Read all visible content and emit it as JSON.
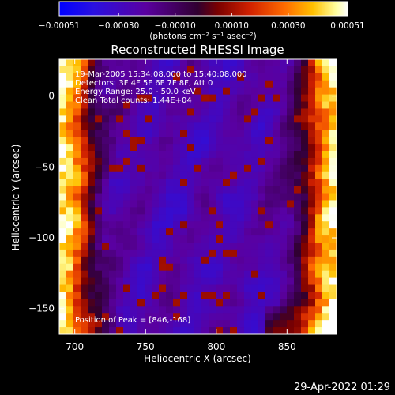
{
  "chart_data": {
    "type": "heatmap",
    "title": "Reconstructed RHESSI Image",
    "xlabel": "Heliocentric X (arcsec)",
    "ylabel": "Heliocentric Y (arcsec)",
    "xlim": [
      689,
      885
    ],
    "ylim": [
      -168,
      26
    ],
    "x_ticks": [
      700,
      750,
      800,
      850
    ],
    "x_tick_labels": [
      "700",
      "750",
      "800",
      "850"
    ],
    "y_ticks": [
      0,
      -50,
      -100,
      -150
    ],
    "y_tick_labels": [
      "0",
      "−50",
      "−100",
      "−150"
    ],
    "colorbar": {
      "range": [
        -0.00051,
        0.00051
      ],
      "ticks": [
        -0.00051,
        -0.0003,
        -0.0001,
        0.0001,
        0.0003,
        0.00051
      ],
      "tick_labels": [
        "−0.00051",
        "−0.00030",
        "−0.00010",
        "0.00010",
        "0.00030",
        "0.00051"
      ],
      "unit_label": "(photons cm⁻² s⁻¹ asec⁻²)",
      "colors": [
        "#0000ff",
        "#3a10c8",
        "#5a00a0",
        "#3a003a",
        "#8b0000",
        "#d02000",
        "#ff6000",
        "#ffb800",
        "#ffffa0",
        "#ffffff"
      ]
    },
    "annotations": [
      "19-Mar-2005 15:34:08.000 to 15:40:08.000",
      "Detectors: 3F 4F 5F 6F 7F 8F, Att 0",
      "Energy Range: 25.0 - 50.0 keV",
      "Clean    Total counts: 1.44E+04"
    ],
    "peak_label": "Position of Peak = [846,-168]",
    "peak_position": [
      846,
      -168
    ],
    "timestamp": "29-Apr-2022 01:29"
  }
}
